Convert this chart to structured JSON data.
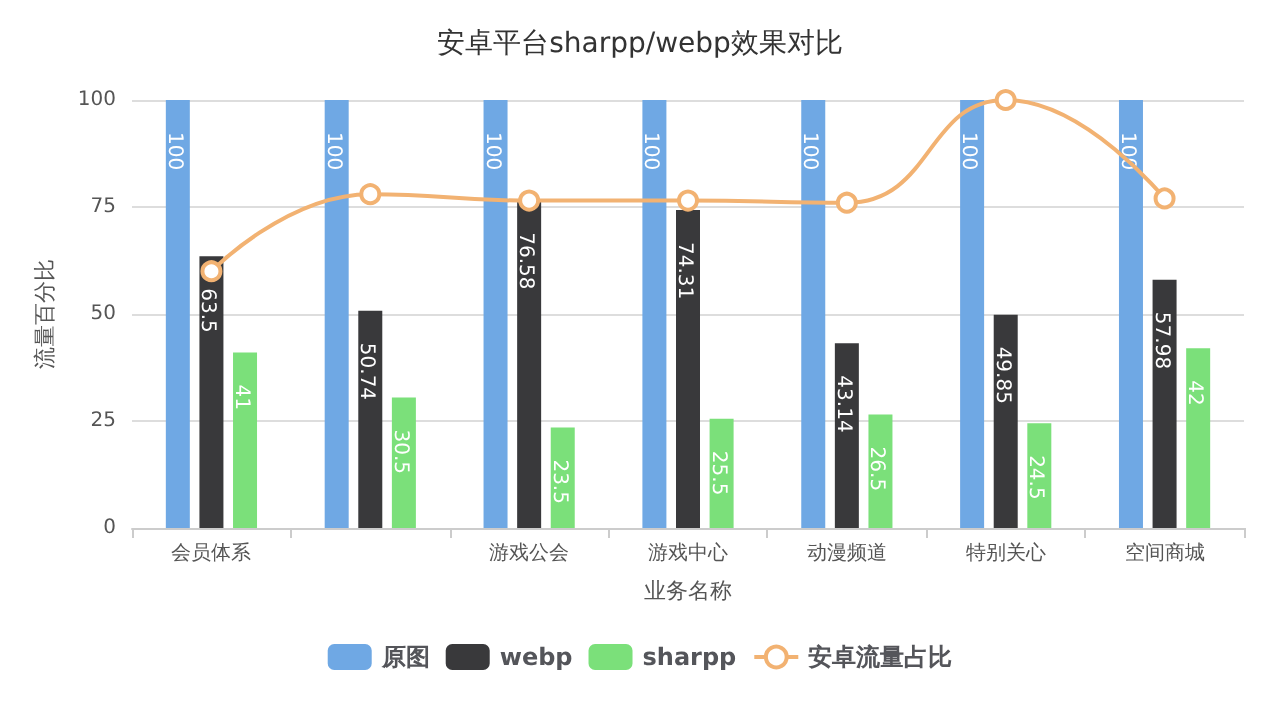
{
  "chart_data": {
    "type": "bar",
    "title": "安卓平台sharpp/webp效果对比",
    "xlabel": "业务名称",
    "ylabel": "流量百分比",
    "categories": [
      "会员体系",
      null,
      "游戏公会",
      "游戏中心",
      "动漫频道",
      "特别关心",
      "空间商城"
    ],
    "series": [
      {
        "name": "原图",
        "color": "#6fa8e4",
        "values": [
          100,
          100,
          100,
          100,
          100,
          100,
          100
        ],
        "value_labels": [
          "100",
          "100",
          "100",
          "100",
          "100",
          "100",
          "100"
        ]
      },
      {
        "name": "webp",
        "color": "#39393b",
        "values": [
          63.5,
          50.74,
          76.58,
          74.31,
          43.14,
          49.85,
          57.98
        ],
        "value_labels": [
          "63.5",
          "50.74",
          "76.58",
          "74.31",
          "43.14",
          "49.85",
          "57.98"
        ]
      },
      {
        "name": "sharpp",
        "color": "#7be07a",
        "values": [
          41,
          30.5,
          23.5,
          25.5,
          26.5,
          24.5,
          42
        ],
        "value_labels": [
          "41",
          "30.5",
          "23.5",
          "25.5",
          "26.5",
          "24.5",
          "42"
        ]
      },
      {
        "name": "安卓流量占比",
        "type": "line",
        "color": "#f2b272",
        "values": [
          60,
          78,
          76.5,
          76.5,
          76,
          100,
          77
        ]
      }
    ],
    "ylim": [
      0,
      100
    ],
    "yticks": [
      0,
      25,
      50,
      75,
      100
    ],
    "grid": "y",
    "legend": "bottom",
    "marker": "circle"
  }
}
